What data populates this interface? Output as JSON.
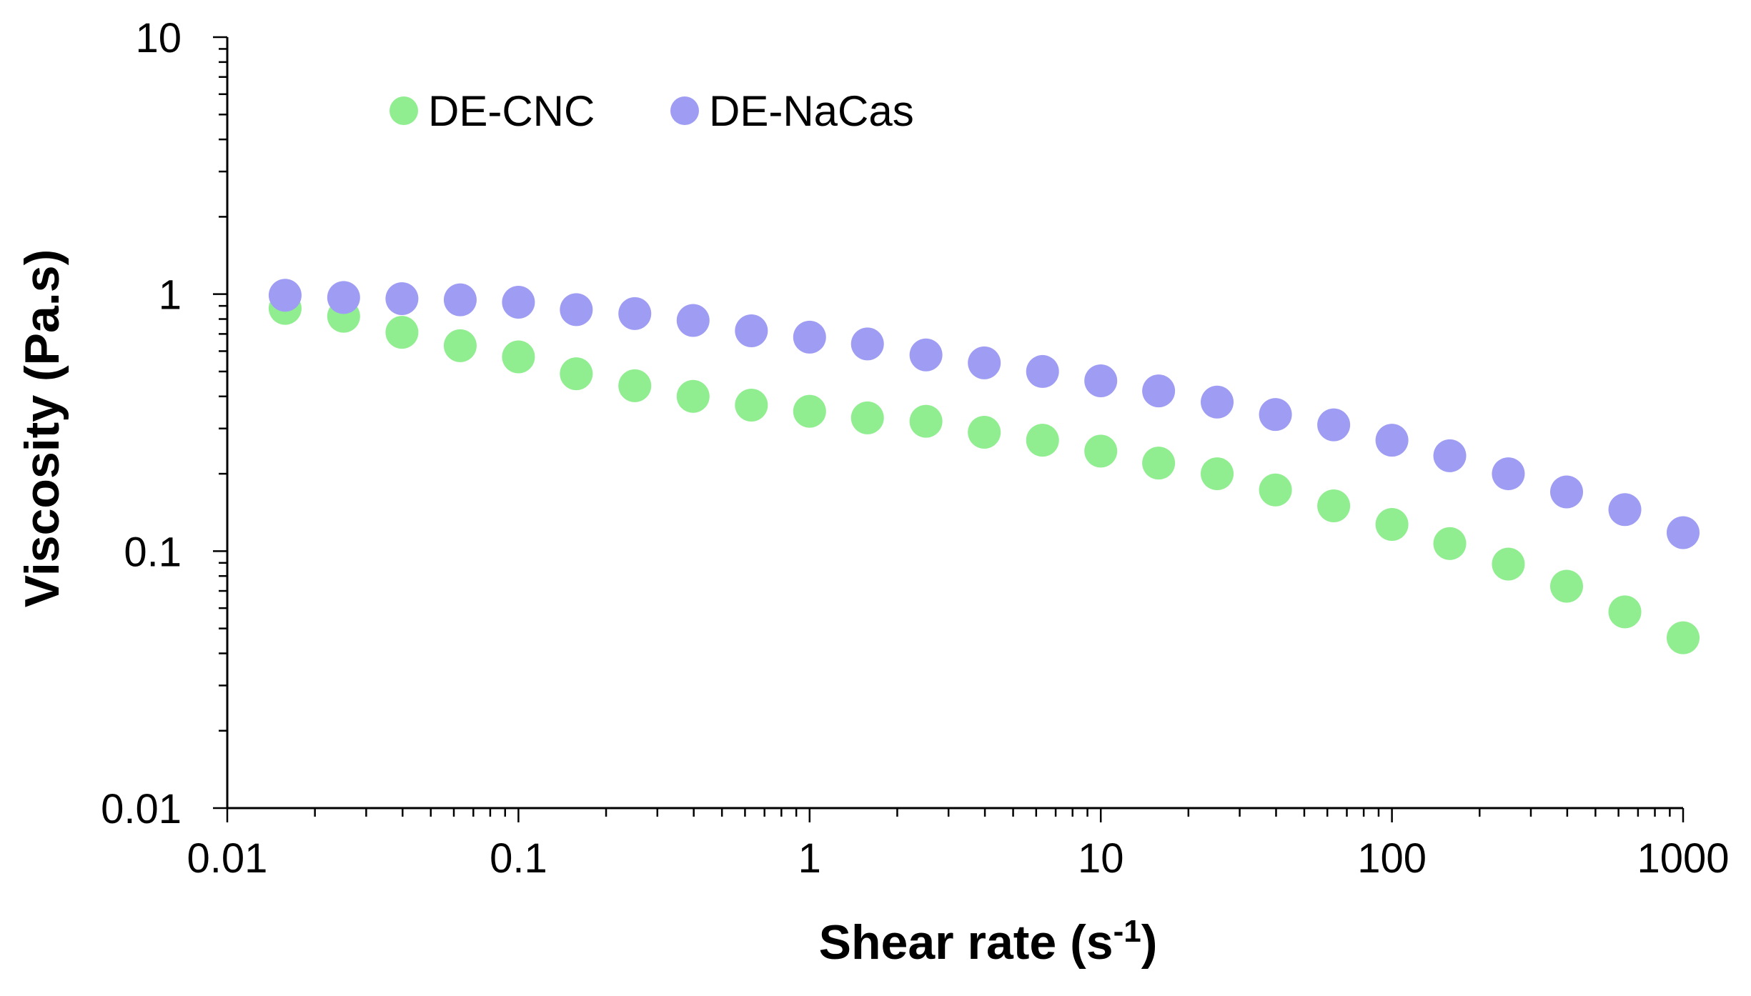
{
  "chart_data": {
    "type": "scatter",
    "title": "",
    "xlabel": "Shear rate (s",
    "xlabel_superscript": "-1",
    "xlabel_suffix": ")",
    "ylabel": "Viscosity (Pa.s)",
    "xscale": "log",
    "yscale": "log",
    "xlim": [
      0.01,
      1000
    ],
    "ylim": [
      0.01,
      10
    ],
    "x_tick_labels": [
      "0.01",
      "0.1",
      "1",
      "10",
      "100",
      "1000"
    ],
    "y_tick_labels": [
      "0.01",
      "0.1",
      "1",
      "10"
    ],
    "grid": false,
    "legend_position": "top-left",
    "series": [
      {
        "name": "DE-CNC",
        "color": "#90ee90",
        "x": [
          0.0158,
          0.0251,
          0.0398,
          0.0631,
          0.1,
          0.158,
          0.251,
          0.398,
          0.631,
          1.0,
          1.58,
          2.51,
          3.98,
          6.31,
          10.0,
          15.8,
          25.1,
          39.8,
          63.1,
          100,
          158,
          251,
          398,
          631,
          1000
        ],
        "y": [
          0.88,
          0.82,
          0.71,
          0.63,
          0.57,
          0.49,
          0.44,
          0.4,
          0.37,
          0.35,
          0.33,
          0.32,
          0.29,
          0.27,
          0.245,
          0.22,
          0.2,
          0.173,
          0.15,
          0.127,
          0.107,
          0.089,
          0.073,
          0.058,
          0.046
        ]
      },
      {
        "name": "DE-NaCas",
        "color": "#9f9cf4",
        "x": [
          0.0158,
          0.0251,
          0.0398,
          0.0631,
          0.1,
          0.158,
          0.251,
          0.398,
          0.631,
          1.0,
          1.58,
          2.51,
          3.98,
          6.31,
          10.0,
          15.8,
          25.1,
          39.8,
          63.1,
          100,
          158,
          251,
          398,
          631,
          1000
        ],
        "y": [
          0.99,
          0.97,
          0.96,
          0.95,
          0.93,
          0.87,
          0.84,
          0.79,
          0.72,
          0.68,
          0.64,
          0.58,
          0.54,
          0.5,
          0.46,
          0.42,
          0.38,
          0.34,
          0.31,
          0.27,
          0.235,
          0.2,
          0.17,
          0.145,
          0.118
        ]
      }
    ]
  }
}
